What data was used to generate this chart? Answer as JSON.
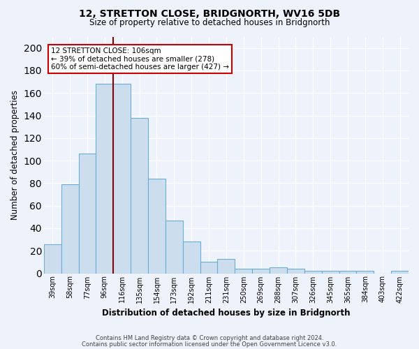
{
  "title": "12, STRETTON CLOSE, BRIDGNORTH, WV16 5DB",
  "subtitle": "Size of property relative to detached houses in Bridgnorth",
  "xlabel": "Distribution of detached houses by size in Bridgnorth",
  "ylabel": "Number of detached properties",
  "categories": [
    "39sqm",
    "58sqm",
    "77sqm",
    "96sqm",
    "116sqm",
    "135sqm",
    "154sqm",
    "173sqm",
    "192sqm",
    "211sqm",
    "231sqm",
    "250sqm",
    "269sqm",
    "288sqm",
    "307sqm",
    "326sqm",
    "345sqm",
    "365sqm",
    "384sqm",
    "403sqm",
    "422sqm"
  ],
  "values": [
    26,
    79,
    106,
    168,
    168,
    138,
    84,
    47,
    28,
    10,
    13,
    4,
    4,
    5,
    4,
    2,
    2,
    2,
    2,
    0,
    2
  ],
  "bar_color": "#ccdded",
  "bar_edge_color": "#6aaed6",
  "property_line_color": "#8b0000",
  "annotation_text": "12 STRETTON CLOSE: 106sqm\n← 39% of detached houses are smaller (278)\n60% of semi-detached houses are larger (427) →",
  "annotation_box_color": "#ffffff",
  "annotation_box_edge": "#cc0000",
  "ylim": [
    0,
    210
  ],
  "yticks": [
    0,
    20,
    40,
    60,
    80,
    100,
    120,
    140,
    160,
    180,
    200
  ],
  "background_color": "#eef2fb",
  "grid_color": "#ffffff",
  "footer_line1": "Contains HM Land Registry data © Crown copyright and database right 2024.",
  "footer_line2": "Contains public sector information licensed under the Open Government Licence v3.0."
}
